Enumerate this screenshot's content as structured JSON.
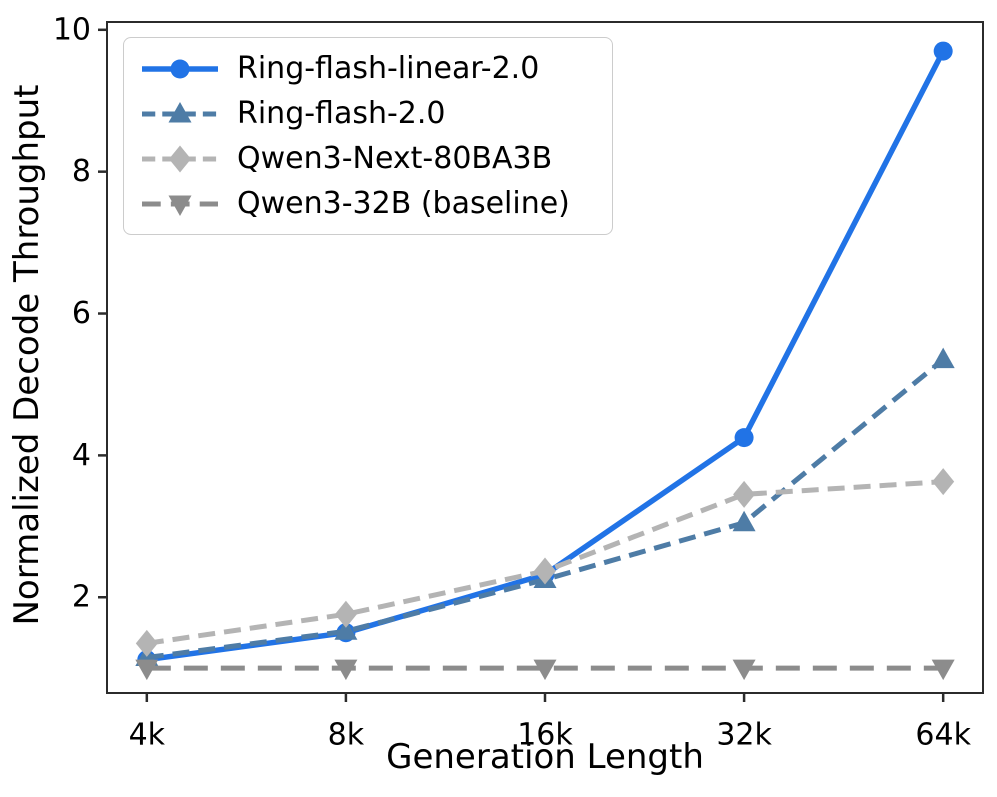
{
  "figure": {
    "background": "#ffffff",
    "axis_color": "#2b2b2b",
    "tick_label_color": "#000000",
    "legend_border_color": "#cccccc"
  },
  "chart_data": {
    "type": "line",
    "title": "",
    "xlabel": "Generation Length",
    "ylabel": "Normalized Decode Throughput",
    "categories": [
      "4k",
      "8k",
      "16k",
      "32k",
      "64k"
    ],
    "yticks": [
      "2",
      "4",
      "6",
      "8",
      "10"
    ],
    "ytick_values": [
      2,
      4,
      6,
      8,
      10
    ],
    "ylim": [
      0.65,
      10.11
    ],
    "grid": false,
    "legend_position": "upper-left",
    "series": [
      {
        "name": "Ring-flash-linear-2.0",
        "color": "#2173E6",
        "line": "solid",
        "marker": "circle",
        "values": [
          1.12,
          1.5,
          2.32,
          4.25,
          9.7
        ]
      },
      {
        "name": "Ring-flash-2.0",
        "color": "#4E7CA6",
        "line": "dashed",
        "marker": "triangle-up",
        "values": [
          1.15,
          1.52,
          2.25,
          3.05,
          5.35
        ]
      },
      {
        "name": "Qwen3-Next-80BA3B",
        "color": "#B4B4B4",
        "line": "dashed",
        "marker": "diamond",
        "values": [
          1.35,
          1.76,
          2.37,
          3.45,
          3.63
        ]
      },
      {
        "name": "Qwen3-32B (baseline)",
        "color": "#8C8C8C",
        "line": "dashed-long",
        "marker": "triangle-down",
        "values": [
          1.0,
          1.0,
          1.0,
          1.0,
          1.0
        ]
      }
    ]
  }
}
